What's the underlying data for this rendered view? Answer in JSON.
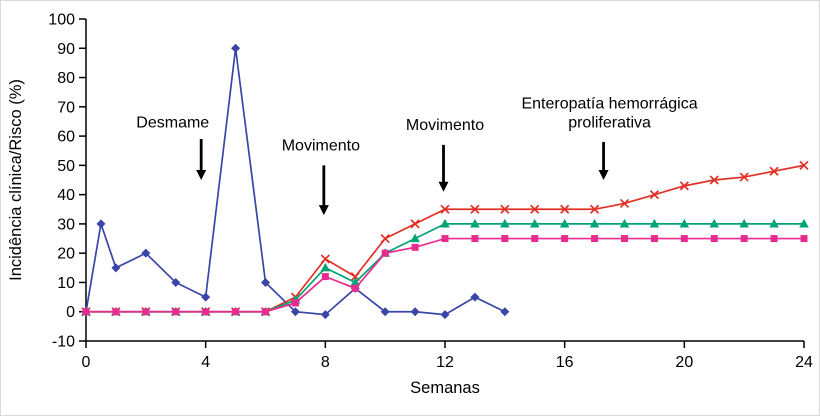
{
  "chart_data": {
    "type": "line",
    "title": "",
    "xlabel": "Semanas",
    "ylabel": "Incidência clínica/Risco (%)",
    "xlim": [
      0,
      24
    ],
    "ylim": [
      -10,
      100
    ],
    "x_ticks": [
      0,
      4,
      8,
      12,
      16,
      20,
      24
    ],
    "y_ticks": [
      100,
      90,
      80,
      70,
      60,
      50,
      40,
      30,
      20,
      10,
      0,
      -10
    ],
    "grid": false,
    "legend": "none",
    "axis_color": "#000000",
    "series": [
      {
        "name": "serie-azul-losango",
        "color": "#3a45a8",
        "marker": "diamond",
        "x": [
          0,
          0.5,
          1,
          2,
          3,
          4,
          5,
          6,
          7,
          8,
          9,
          10,
          11,
          12,
          13,
          14
        ],
        "y": [
          0,
          30,
          15,
          20,
          10,
          5,
          90,
          10,
          0,
          -1,
          8,
          0,
          0,
          -1,
          5,
          0
        ]
      },
      {
        "name": "serie-vermelha-x",
        "color": "#e03127",
        "marker": "x",
        "x": [
          0,
          1,
          2,
          3,
          4,
          5,
          6,
          7,
          8,
          9,
          10,
          11,
          12,
          13,
          14,
          15,
          16,
          17,
          18,
          19,
          20,
          21,
          22,
          23,
          24
        ],
        "y": [
          0,
          0,
          0,
          0,
          0,
          0,
          0,
          5,
          18,
          12,
          25,
          30,
          35,
          35,
          35,
          35,
          35,
          35,
          37,
          40,
          43,
          45,
          46,
          48,
          50
        ]
      },
      {
        "name": "serie-verde-triangulo",
        "color": "#00a477",
        "marker": "triangle",
        "x": [
          0,
          1,
          2,
          3,
          4,
          5,
          6,
          7,
          8,
          9,
          10,
          11,
          12,
          13,
          14,
          15,
          16,
          17,
          18,
          19,
          20,
          21,
          22,
          23,
          24
        ],
        "y": [
          0,
          0,
          0,
          0,
          0,
          0,
          0,
          4,
          15,
          10,
          20,
          25,
          30,
          30,
          30,
          30,
          30,
          30,
          30,
          30,
          30,
          30,
          30,
          30,
          30
        ]
      },
      {
        "name": "serie-magenta-quadrado",
        "color": "#e82c8f",
        "marker": "square",
        "x": [
          0,
          1,
          2,
          3,
          4,
          5,
          6,
          7,
          8,
          9,
          10,
          11,
          12,
          13,
          14,
          15,
          16,
          17,
          18,
          19,
          20,
          21,
          22,
          23,
          24
        ],
        "y": [
          0,
          0,
          0,
          0,
          0,
          0,
          0,
          3,
          12,
          8,
          20,
          22,
          25,
          25,
          25,
          25,
          25,
          25,
          25,
          25,
          25,
          25,
          25,
          25,
          25
        ]
      }
    ],
    "annotations": [
      {
        "lines": [
          "Desmame"
        ],
        "text_x": 2.9,
        "text_y": 63,
        "arrow_x": 3.85,
        "arrow_from": 59,
        "arrow_to": 45
      },
      {
        "lines": [
          "Movimento"
        ],
        "text_x": 7.85,
        "text_y": 55,
        "arrow_x": 7.95,
        "arrow_from": 50,
        "arrow_to": 33
      },
      {
        "lines": [
          "Movimento"
        ],
        "text_x": 12,
        "text_y": 62,
        "arrow_x": 11.95,
        "arrow_from": 57,
        "arrow_to": 41
      },
      {
        "lines": [
          "Enteropatía hemorrágica",
          "proliferativa"
        ],
        "text_x": 17.5,
        "text_y": 63,
        "arrow_x": 17.3,
        "arrow_from": 58,
        "arrow_to": 45
      }
    ]
  }
}
